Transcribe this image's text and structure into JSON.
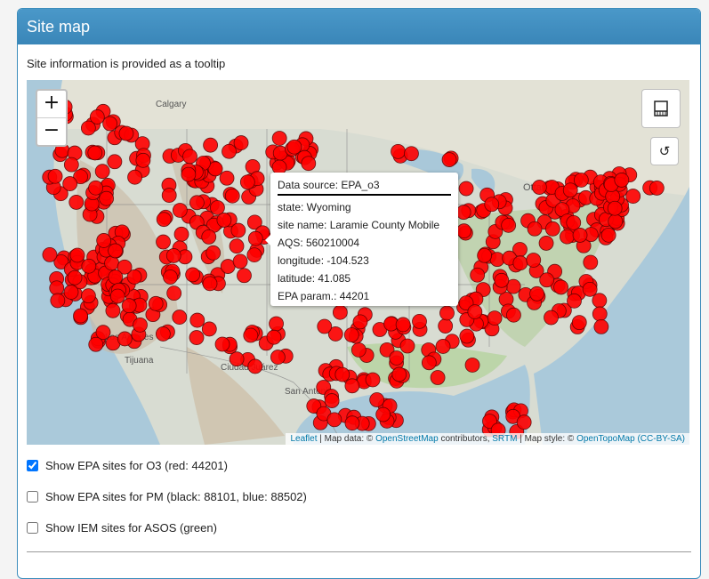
{
  "panel": {
    "title": "Site map"
  },
  "info_text": "Site information is provided as a tooltip",
  "map": {
    "zoom_in_label": "+",
    "zoom_out_label": "−",
    "reset_label": "↺",
    "labels": [
      "Calgary",
      "Ottawa",
      "Los Angeles",
      "Tijuana",
      "Ciudad Juárez",
      "San Antonio"
    ],
    "marker_color": "#ff0000",
    "tooltip": {
      "title": "Data source: EPA_o3",
      "state": "state: Wyoming",
      "site_name": "site name: Laramie County Mobile",
      "aqs": "AQS: 560210004",
      "longitude": "longitude: -104.523",
      "latitude": "latitude: 41.085",
      "param": "EPA param.: 44201"
    },
    "attribution": {
      "leaflet": "Leaflet",
      "sep1": " | Map data: © ",
      "osm": "OpenStreetMap",
      "contrib": " contributors, ",
      "srtm": "SRTM",
      "style": " | Map style: © ",
      "otm": "OpenTopoMap",
      "license": " (CC-BY-SA)"
    }
  },
  "checkboxes": [
    {
      "label": "Show EPA sites for O3 (red: 44201)",
      "checked": true
    },
    {
      "label": "Show EPA sites for PM (black: 88101, blue: 88502)",
      "checked": false
    },
    {
      "label": "Show IEM sites for ASOS (green)",
      "checked": false
    }
  ]
}
